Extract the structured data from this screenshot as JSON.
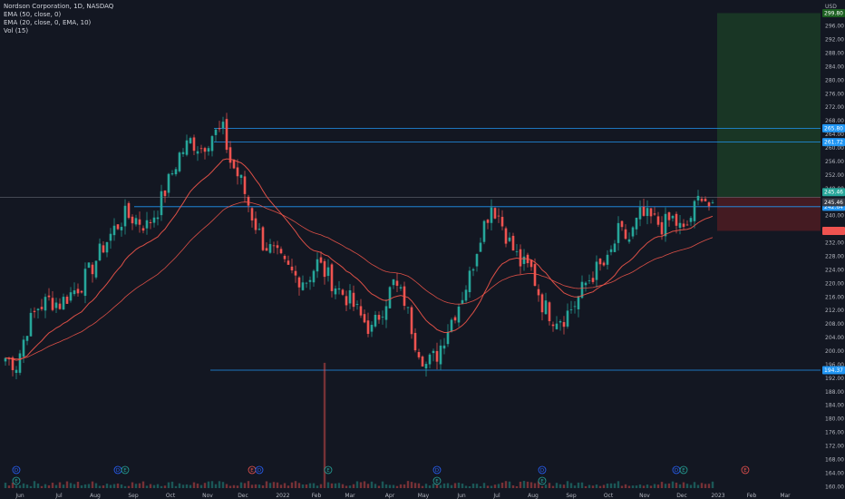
{
  "legend": {
    "symbol": "Nordson Corporation, 1D, NASDAQ",
    "ema50": "EMA (50, close, 0)",
    "ema20": "EMA (20, close, 0, EMA, 10)",
    "vol": "Vol (15)"
  },
  "currency": "USD",
  "colors": {
    "background": "#131722",
    "up": "#26a69a",
    "down": "#ef5350",
    "ema": "#f2554a",
    "hline": "#2196f3",
    "profit_zone": "#1b3a26",
    "loss_zone": "#4a1c22"
  },
  "chart_data": {
    "type": "candlestick",
    "title": "Nordson Corporation, 1D, NASDAQ",
    "ylim": [
      159,
      301
    ],
    "y_ticks": [
      160,
      164,
      168,
      172,
      176,
      180,
      184,
      188,
      192,
      196,
      200,
      204,
      208,
      212,
      216,
      220,
      224,
      228,
      232,
      236,
      240,
      244,
      248,
      252,
      256,
      260,
      264,
      268,
      272,
      276,
      280,
      284,
      288,
      292,
      296
    ],
    "x_ticks": [
      "Jun",
      "Jul",
      "Aug",
      "Sep",
      "Oct",
      "Nov",
      "Dec",
      "2022",
      "Feb",
      "Mar",
      "Apr",
      "May",
      "Jun",
      "Jul",
      "Aug",
      "Sep",
      "Oct",
      "Nov",
      "Dec",
      "2023",
      "Feb",
      "Mar"
    ],
    "price_path": [
      [
        0,
        198
      ],
      [
        3,
        196
      ],
      [
        6,
        207
      ],
      [
        9,
        213
      ],
      [
        12,
        215
      ],
      [
        15,
        214
      ],
      [
        18,
        217
      ],
      [
        21,
        220
      ],
      [
        24,
        225
      ],
      [
        27,
        231
      ],
      [
        30,
        236
      ],
      [
        33,
        240
      ],
      [
        36,
        239
      ],
      [
        39,
        237
      ],
      [
        42,
        242
      ],
      [
        45,
        250
      ],
      [
        48,
        258
      ],
      [
        51,
        262
      ],
      [
        54,
        260
      ],
      [
        57,
        264
      ],
      [
        60,
        265
      ],
      [
        62,
        256
      ],
      [
        65,
        250
      ],
      [
        68,
        240
      ],
      [
        71,
        232
      ],
      [
        74,
        229
      ],
      [
        77,
        225
      ],
      [
        80,
        222
      ],
      [
        83,
        221
      ],
      [
        86,
        226
      ],
      [
        89,
        222
      ],
      [
        92,
        218
      ],
      [
        95,
        215
      ],
      [
        98,
        210
      ],
      [
        101,
        206
      ],
      [
        104,
        213
      ],
      [
        107,
        220
      ],
      [
        110,
        215
      ],
      [
        113,
        203
      ],
      [
        116,
        196
      ],
      [
        119,
        199
      ],
      [
        122,
        207
      ],
      [
        125,
        214
      ],
      [
        128,
        222
      ],
      [
        131,
        235
      ],
      [
        134,
        243
      ],
      [
        136,
        240
      ],
      [
        139,
        232
      ],
      [
        142,
        226
      ],
      [
        145,
        224
      ],
      [
        148,
        214
      ],
      [
        151,
        210
      ],
      [
        154,
        210
      ],
      [
        157,
        214
      ],
      [
        160,
        220
      ],
      [
        163,
        224
      ],
      [
        166,
        226
      ],
      [
        169,
        235
      ],
      [
        172,
        233
      ],
      [
        175,
        240
      ],
      [
        178,
        239
      ],
      [
        181,
        237
      ],
      [
        184,
        239
      ],
      [
        187,
        235
      ],
      [
        190,
        242
      ],
      [
        192,
        247
      ],
      [
        195,
        241
      ]
    ],
    "horizontal_lines": [
      {
        "price": 265.8,
        "label": "265.80"
      },
      {
        "price": 261.72,
        "label": "261.72"
      },
      {
        "price": 242.64,
        "label": "242.64"
      },
      {
        "price": 194.37,
        "label": "194.37"
      }
    ],
    "position": {
      "entry": 245.46,
      "target": 299.8,
      "stop": 235.5
    },
    "price_labels": [
      {
        "value": "299.80",
        "style": "target"
      },
      {
        "value": "245.46",
        "style": "price"
      },
      {
        "value": "245.46",
        "style": "entry"
      }
    ],
    "volume_spike_index": 88,
    "events": [
      {
        "index": 3,
        "letter": "D"
      },
      {
        "index": 3,
        "letter": "E",
        "row": 2
      },
      {
        "index": 31,
        "letter": "D"
      },
      {
        "index": 33,
        "letter": "E"
      },
      {
        "index": 68,
        "letter": "E"
      },
      {
        "index": 70,
        "letter": "D"
      },
      {
        "index": 89,
        "letter": "E"
      },
      {
        "index": 119,
        "letter": "D"
      },
      {
        "index": 119,
        "letter": "E",
        "row": 2
      },
      {
        "index": 148,
        "letter": "D"
      },
      {
        "index": 148,
        "letter": "E",
        "row": 2
      },
      {
        "index": 185,
        "letter": "D"
      },
      {
        "index": 187,
        "letter": "E"
      },
      {
        "index": 204,
        "letter": "E"
      }
    ]
  }
}
